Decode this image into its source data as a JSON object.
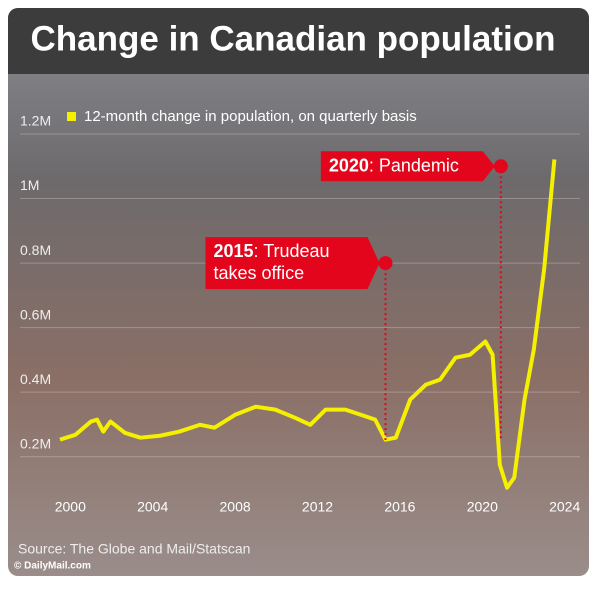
{
  "chart_data": {
    "type": "line",
    "title": "Change in Canadian population",
    "legend_label": "12-month change in population, on quarterly basis",
    "source": "Source: The Globe and Mail/Statscan",
    "credit": "© DailyMail.com",
    "xlim": [
      1999.5,
      2024.5
    ],
    "xticks": [
      2000,
      2004,
      2008,
      2012,
      2016,
      2020,
      2024
    ],
    "ylim": [
      100000,
      1200000
    ],
    "yticks": [
      {
        "value": 200000,
        "label": "0.2M"
      },
      {
        "value": 400000,
        "label": "0.4M"
      },
      {
        "value": 600000,
        "label": "0.6M"
      },
      {
        "value": 800000,
        "label": "0.8M"
      },
      {
        "value": 1000000,
        "label": "1M"
      },
      {
        "value": 1200000,
        "label": "1.2M"
      }
    ],
    "x": [
      1999.5,
      2000.25,
      2001,
      2001.3,
      2001.6,
      2001.95,
      2002.65,
      2003.4,
      2004.35,
      2005.3,
      2006.3,
      2007,
      2008,
      2009,
      2009.95,
      2010.9,
      2011.65,
      2012.4,
      2013.35,
      2014.1,
      2014.8,
      2015.3,
      2015.8,
      2016.5,
      2017.25,
      2017.95,
      2018.7,
      2019.4,
      2020.15,
      2020.5,
      2020.85,
      2021.2,
      2021.55,
      2022.05,
      2022.5,
      2023,
      2023.5
    ],
    "series": [
      {
        "name": "12-month change in population, on quarterly basis",
        "color": "#f5f000",
        "values": [
          253000,
          268000,
          309000,
          315000,
          278000,
          309000,
          274000,
          259000,
          265000,
          278000,
          299000,
          290000,
          330000,
          355000,
          346000,
          321000,
          299000,
          346000,
          346000,
          330000,
          315000,
          253000,
          259000,
          377000,
          423000,
          439000,
          507000,
          516000,
          557000,
          516000,
          175000,
          104000,
          135000,
          377000,
          532000,
          780000,
          1121000
        ]
      }
    ],
    "annotations": [
      {
        "x": 2015.3,
        "y": 800000,
        "bold": "2015",
        "lines": [
          ": Trudeau",
          "takes office"
        ]
      },
      {
        "x": 2020.9,
        "y": 1100000,
        "bold": "2020",
        "lines": [
          ": Pandemic"
        ]
      }
    ]
  }
}
